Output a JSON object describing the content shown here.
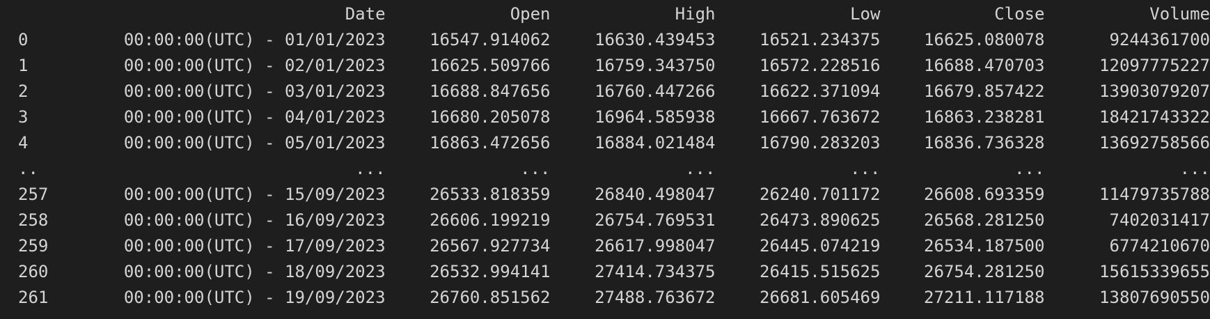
{
  "dataframe": {
    "columns": [
      "",
      "Date",
      "Open",
      "High",
      "Low",
      "Close",
      "Volume"
    ],
    "rows": [
      [
        "0",
        "00:00:00(UTC) - 01/01/2023",
        "16547.914062",
        "16630.439453",
        "16521.234375",
        "16625.080078",
        "9244361700"
      ],
      [
        "1",
        "00:00:00(UTC) - 02/01/2023",
        "16625.509766",
        "16759.343750",
        "16572.228516",
        "16688.470703",
        "12097775227"
      ],
      [
        "2",
        "00:00:00(UTC) - 03/01/2023",
        "16688.847656",
        "16760.447266",
        "16622.371094",
        "16679.857422",
        "13903079207"
      ],
      [
        "3",
        "00:00:00(UTC) - 04/01/2023",
        "16680.205078",
        "16964.585938",
        "16667.763672",
        "16863.238281",
        "18421743322"
      ],
      [
        "4",
        "00:00:00(UTC) - 05/01/2023",
        "16863.472656",
        "16884.021484",
        "16790.283203",
        "16836.736328",
        "13692758566"
      ],
      [
        "..",
        "...",
        "...",
        "...",
        "...",
        "...",
        "..."
      ],
      [
        "257",
        "00:00:00(UTC) - 15/09/2023",
        "26533.818359",
        "26840.498047",
        "26240.701172",
        "26608.693359",
        "11479735788"
      ],
      [
        "258",
        "00:00:00(UTC) - 16/09/2023",
        "26606.199219",
        "26754.769531",
        "26473.890625",
        "26568.281250",
        "7402031417"
      ],
      [
        "259",
        "00:00:00(UTC) - 17/09/2023",
        "26567.927734",
        "26617.998047",
        "26445.074219",
        "26534.187500",
        "6774210670"
      ],
      [
        "260",
        "00:00:00(UTC) - 18/09/2023",
        "26532.994141",
        "27414.734375",
        "26415.515625",
        "26754.281250",
        "15615339655"
      ],
      [
        "261",
        "00:00:00(UTC) - 19/09/2023",
        "26760.851562",
        "27488.763672",
        "26681.605469",
        "27211.117188",
        "13807690550"
      ]
    ]
  }
}
